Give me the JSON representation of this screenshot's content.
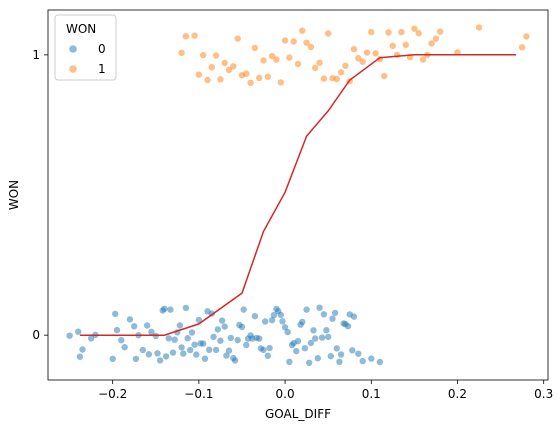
{
  "chart_data": {
    "type": "scatter",
    "xlabel": "GOAL_DIFF",
    "ylabel": "WON",
    "xlim": [
      -0.275,
      0.305
    ],
    "ylim": [
      -0.16,
      1.16
    ],
    "xticks": [
      -0.2,
      -0.1,
      0.0,
      0.1,
      0.2,
      0.3
    ],
    "xtick_labels": [
      "−0.2",
      "−0.1",
      "0.0",
      "0.1",
      "0.2",
      "0.3"
    ],
    "yticks": [
      0,
      1
    ],
    "ytick_labels": [
      "0",
      "1"
    ],
    "jitter": 0.1,
    "grid": false,
    "legend": {
      "title": "WON",
      "placement": "top-left",
      "entries": [
        {
          "label": "0",
          "color": "#1f77b4"
        },
        {
          "label": "1",
          "color": "#ff7f0e"
        }
      ]
    },
    "series": [
      {
        "name": "0",
        "color": "#1f77b4",
        "y": 0,
        "x": [
          -0.25,
          -0.24,
          -0.238,
          -0.235,
          -0.225,
          -0.22,
          -0.2,
          -0.197,
          -0.195,
          -0.19,
          -0.186,
          -0.18,
          -0.175,
          -0.173,
          -0.17,
          -0.165,
          -0.16,
          -0.158,
          -0.155,
          -0.15,
          -0.148,
          -0.145,
          -0.142,
          -0.14,
          -0.138,
          -0.135,
          -0.133,
          -0.13,
          -0.128,
          -0.125,
          -0.122,
          -0.12,
          -0.118,
          -0.115,
          -0.113,
          -0.11,
          -0.108,
          -0.105,
          -0.103,
          -0.1,
          -0.098,
          -0.095,
          -0.093,
          -0.09,
          -0.088,
          -0.085,
          -0.083,
          -0.08,
          -0.078,
          -0.075,
          -0.073,
          -0.07,
          -0.068,
          -0.065,
          -0.063,
          -0.06,
          -0.058,
          -0.055,
          -0.053,
          -0.05,
          -0.048,
          -0.045,
          -0.043,
          -0.04,
          -0.038,
          -0.035,
          -0.033,
          -0.03,
          -0.028,
          -0.025,
          -0.023,
          -0.02,
          -0.018,
          -0.015,
          -0.013,
          -0.01,
          -0.008,
          -0.005,
          -0.003,
          0.0,
          0.003,
          0.005,
          0.008,
          0.01,
          0.013,
          0.015,
          0.018,
          0.02,
          0.023,
          0.025,
          0.028,
          0.03,
          0.033,
          0.035,
          0.038,
          0.04,
          0.043,
          0.045,
          0.048,
          0.05,
          0.053,
          0.055,
          0.058,
          0.06,
          0.063,
          0.065,
          0.068,
          0.07,
          0.073,
          0.075,
          0.078,
          0.08,
          0.085,
          0.09,
          0.1,
          0.11
        ]
      },
      {
        "name": "1",
        "color": "#ff7f0e",
        "y": 1,
        "x": [
          -0.12,
          -0.115,
          -0.105,
          -0.1,
          -0.095,
          -0.09,
          -0.085,
          -0.08,
          -0.075,
          -0.07,
          -0.065,
          -0.06,
          -0.055,
          -0.05,
          -0.045,
          -0.04,
          -0.035,
          -0.03,
          -0.025,
          -0.02,
          -0.015,
          -0.01,
          -0.005,
          0.0,
          0.005,
          0.01,
          0.015,
          0.02,
          0.025,
          0.03,
          0.035,
          0.04,
          0.045,
          0.05,
          0.055,
          0.06,
          0.065,
          0.07,
          0.075,
          0.08,
          0.085,
          0.09,
          0.095,
          0.1,
          0.105,
          0.11,
          0.115,
          0.12,
          0.125,
          0.13,
          0.135,
          0.14,
          0.145,
          0.15,
          0.155,
          0.16,
          0.165,
          0.17,
          0.175,
          0.18,
          0.2,
          0.225,
          0.275,
          0.28
        ]
      }
    ],
    "fit_line": {
      "color": "#d62728",
      "points": [
        [
          -0.238,
          0.0
        ],
        [
          -0.14,
          0.0
        ],
        [
          -0.1,
          0.04
        ],
        [
          -0.05,
          0.15
        ],
        [
          -0.025,
          0.37
        ],
        [
          0.0,
          0.51
        ],
        [
          0.025,
          0.71
        ],
        [
          0.05,
          0.8
        ],
        [
          0.075,
          0.91
        ],
        [
          0.11,
          0.99
        ],
        [
          0.15,
          1.0
        ],
        [
          0.268,
          1.0
        ]
      ]
    }
  }
}
